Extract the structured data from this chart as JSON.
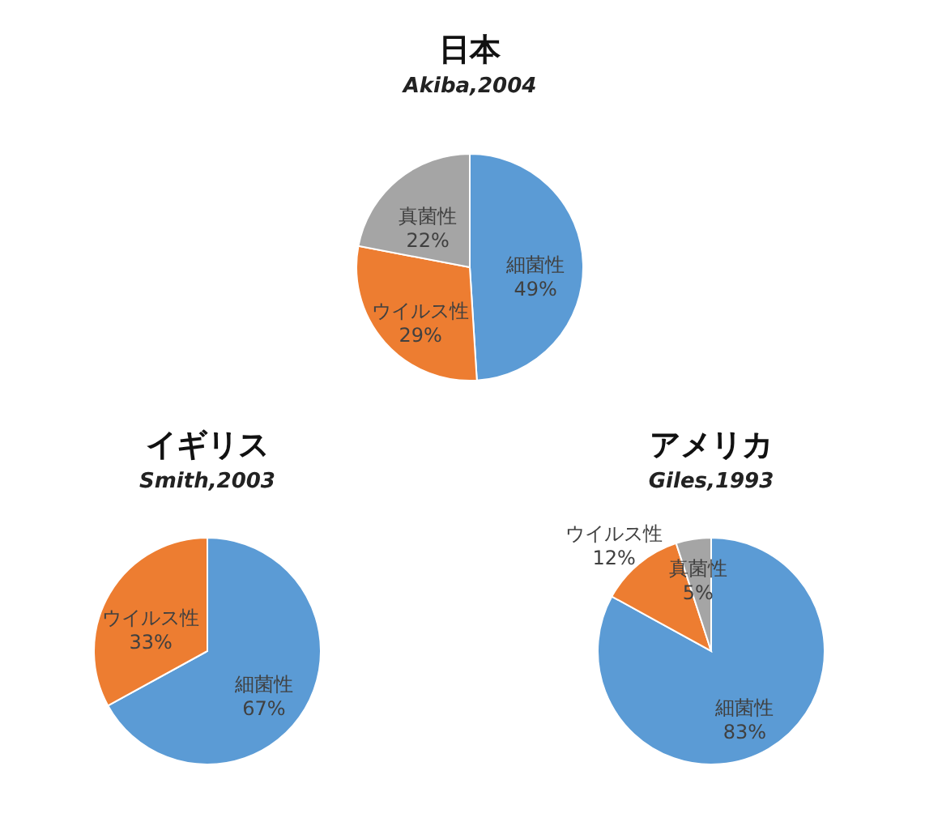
{
  "chart_data": [
    {
      "type": "pie",
      "title": "日本",
      "subtitle": "Akiba,2004",
      "categories": [
        "細菌性",
        "ウイルス性",
        "真菌性"
      ],
      "values": [
        49,
        29,
        22
      ],
      "colors": [
        "#5b9bd5",
        "#ed7d31",
        "#a5a5a5"
      ],
      "value_labels": [
        "49%",
        "29%",
        "22%"
      ]
    },
    {
      "type": "pie",
      "title": "イギリス",
      "subtitle": "Smith,2003",
      "categories": [
        "細菌性",
        "ウイルス性"
      ],
      "values": [
        67,
        33
      ],
      "colors": [
        "#5b9bd5",
        "#ed7d31"
      ],
      "value_labels": [
        "67%",
        "33%"
      ]
    },
    {
      "type": "pie",
      "title": "アメリカ",
      "subtitle": "Giles,1993",
      "categories": [
        "細菌性",
        "ウイルス性",
        "真菌性"
      ],
      "values": [
        83,
        12,
        5
      ],
      "colors": [
        "#5b9bd5",
        "#ed7d31",
        "#a5a5a5"
      ],
      "value_labels": [
        "83%",
        "12%",
        "5%"
      ]
    }
  ]
}
